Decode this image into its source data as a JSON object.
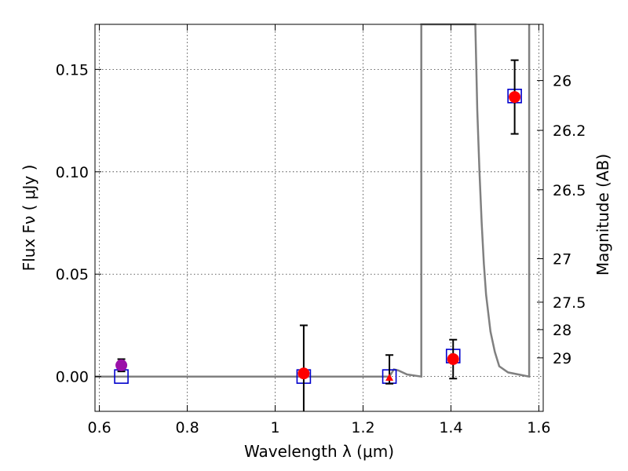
{
  "chart_data": {
    "type": "scatter",
    "xlabel": "Wavelength  λ (μm)",
    "ylabel": "Flux  Fν  ( μJy )",
    "y2label": "Magnitude (AB)",
    "xlim": [
      0.59,
      1.61
    ],
    "ylim": [
      -0.017,
      0.172
    ],
    "grid": true,
    "x_ticks": [
      {
        "value": 0.6,
        "label": "0.6"
      },
      {
        "value": 0.8,
        "label": "0.8"
      },
      {
        "value": 1.0,
        "label": "1"
      },
      {
        "value": 1.2,
        "label": "1.2"
      },
      {
        "value": 1.4,
        "label": "1.4"
      },
      {
        "value": 1.6,
        "label": "1.6"
      }
    ],
    "y_ticks": [
      {
        "value": 0.0,
        "label": "0.00"
      },
      {
        "value": 0.05,
        "label": "0.05"
      },
      {
        "value": 0.1,
        "label": "0.10"
      },
      {
        "value": 0.15,
        "label": "0.15"
      }
    ],
    "mag_ticks": [
      {
        "value": 26,
        "label": "26"
      },
      {
        "value": 26.2,
        "label": "26.2"
      },
      {
        "value": 26.5,
        "label": "26.5"
      },
      {
        "value": 27,
        "label": "27"
      },
      {
        "value": 27.5,
        "label": "27.5"
      },
      {
        "value": 28,
        "label": "28"
      },
      {
        "value": 29,
        "label": "29"
      }
    ],
    "observed": [
      {
        "x": 0.65,
        "y": 0.0055,
        "yerr_low": 0.003,
        "yerr_high": 0.003,
        "marker": "circle",
        "color": "#9b10a9"
      },
      {
        "x": 1.065,
        "y": 0.0015,
        "yerr_low": 0.0185,
        "yerr_high": 0.0235,
        "marker": "circle",
        "color": "#ff0000"
      },
      {
        "x": 1.26,
        "y": -0.0005,
        "yerr_low": 0.003,
        "yerr_high": 0.011,
        "marker": "triangle",
        "color": "#ff0000"
      },
      {
        "x": 1.405,
        "y": 0.0085,
        "yerr_low": 0.0095,
        "yerr_high": 0.0095,
        "marker": "circle",
        "color": "#ff0000"
      },
      {
        "x": 1.545,
        "y": 0.1365,
        "yerr_low": 0.018,
        "yerr_high": 0.018,
        "marker": "circle",
        "color": "#ff0000"
      }
    ],
    "model_points": [
      {
        "x": 0.65,
        "y": 0.0
      },
      {
        "x": 1.065,
        "y": 0.0
      },
      {
        "x": 1.26,
        "y": 0.0
      },
      {
        "x": 1.405,
        "y": 0.01
      },
      {
        "x": 1.545,
        "y": 0.137
      }
    ],
    "model_color": "#0000cc",
    "sed_curve": [
      [
        0.59,
        0.0
      ],
      [
        1.26,
        0.0
      ],
      [
        1.27,
        0.0035
      ],
      [
        1.28,
        0.003
      ],
      [
        1.3,
        0.001
      ],
      [
        1.3325,
        0.0
      ],
      [
        1.3325,
        0.18
      ],
      [
        1.4555,
        0.18
      ],
      [
        1.46,
        0.13
      ],
      [
        1.465,
        0.1
      ],
      [
        1.47,
        0.075
      ],
      [
        1.475,
        0.055
      ],
      [
        1.48,
        0.04
      ],
      [
        1.49,
        0.022
      ],
      [
        1.5,
        0.012
      ],
      [
        1.51,
        0.005
      ],
      [
        1.53,
        0.002
      ],
      [
        1.578,
        0.0
      ],
      [
        1.578,
        0.18
      ]
    ],
    "sed_color": "#808080",
    "mag_zero_point": 23.9
  }
}
